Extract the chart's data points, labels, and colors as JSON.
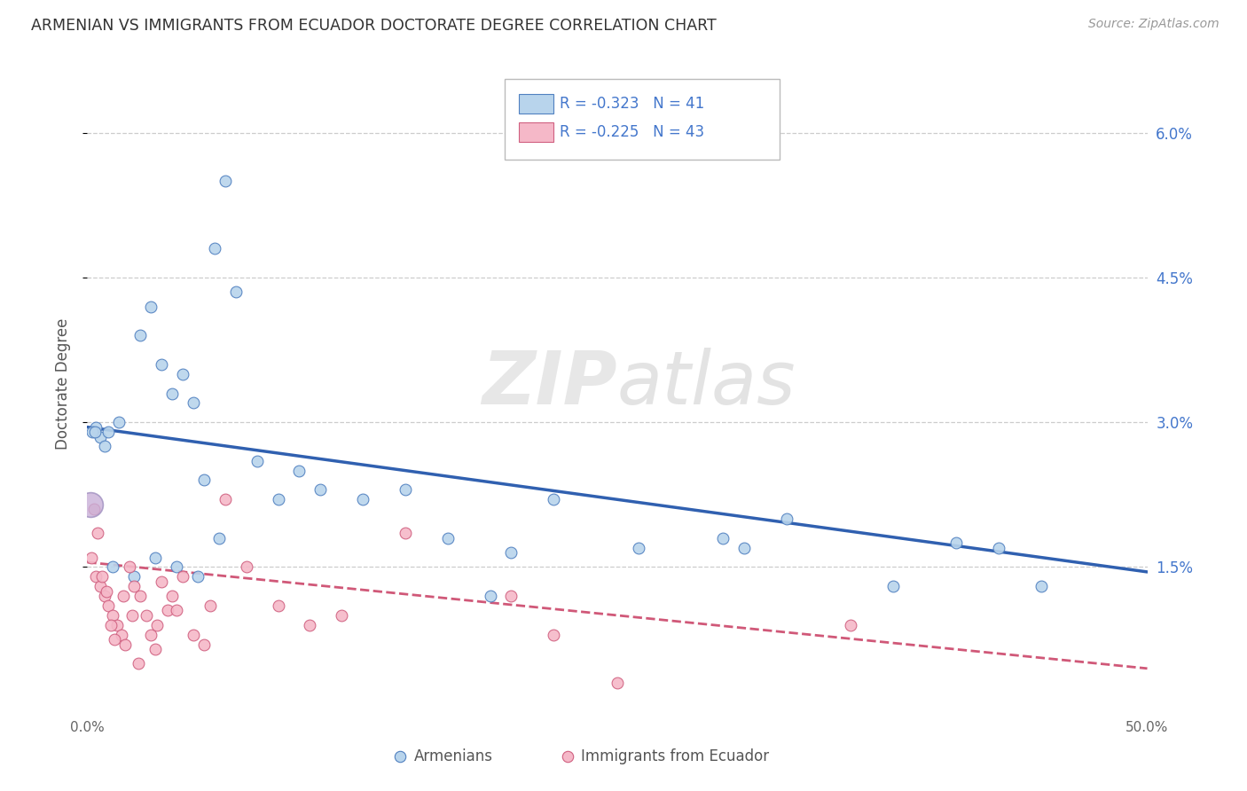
{
  "title": "ARMENIAN VS IMMIGRANTS FROM ECUADOR DOCTORATE DEGREE CORRELATION CHART",
  "source": "Source: ZipAtlas.com",
  "ylabel": "Doctorate Degree",
  "watermark": "ZIPatlas",
  "legend_r1": "R = -0.323",
  "legend_n1": "N = 41",
  "legend_r2": "R = -0.225",
  "legend_n2": "N = 43",
  "legend_label1": "Armenians",
  "legend_label2": "Immigrants from Ecuador",
  "xmin": 0.0,
  "xmax": 50.0,
  "ymin": 0.0,
  "ymax": 6.8,
  "ytick_vals": [
    1.5,
    3.0,
    4.5,
    6.0
  ],
  "ytick_labels": [
    "1.5%",
    "3.0%",
    "4.5%",
    "6.0%"
  ],
  "color_armenians_fill": "#b8d4ec",
  "color_armenians_edge": "#5080c0",
  "color_ecuador_fill": "#f5b8c8",
  "color_ecuador_edge": "#d06080",
  "color_line_armenians": "#3060b0",
  "color_line_ecuador": "#d05878",
  "background_color": "#ffffff",
  "grid_color": "#cccccc",
  "armenians_x": [
    0.4,
    0.6,
    0.8,
    1.0,
    1.5,
    2.5,
    3.0,
    3.5,
    4.0,
    4.5,
    5.0,
    5.5,
    6.0,
    6.5,
    7.0,
    8.0,
    9.0,
    10.0,
    11.0,
    13.0,
    15.0,
    17.0,
    19.0,
    20.0,
    22.0,
    26.0,
    30.0,
    31.0,
    33.0,
    38.0,
    41.0,
    43.0,
    45.0,
    1.2,
    2.2,
    3.2,
    4.2,
    5.2,
    6.2,
    0.25,
    0.35
  ],
  "armenians_y": [
    2.95,
    2.85,
    2.75,
    2.9,
    3.0,
    3.9,
    4.2,
    3.6,
    3.3,
    3.5,
    3.2,
    2.4,
    4.8,
    5.5,
    4.35,
    2.6,
    2.2,
    2.5,
    2.3,
    2.2,
    2.3,
    1.8,
    1.2,
    1.65,
    2.2,
    1.7,
    1.8,
    1.7,
    2.0,
    1.3,
    1.75,
    1.7,
    1.3,
    1.5,
    1.4,
    1.6,
    1.5,
    1.4,
    1.8,
    2.9,
    2.9
  ],
  "ecuador_x": [
    0.2,
    0.4,
    0.6,
    0.8,
    1.0,
    1.2,
    1.4,
    1.6,
    1.8,
    2.0,
    2.2,
    2.5,
    2.8,
    3.0,
    3.2,
    3.5,
    3.8,
    4.0,
    4.5,
    5.0,
    5.5,
    6.5,
    7.5,
    9.0,
    10.5,
    12.0,
    15.0,
    20.0,
    22.0,
    25.0,
    36.0,
    0.3,
    0.5,
    0.7,
    0.9,
    1.1,
    1.3,
    1.7,
    2.1,
    2.4,
    3.3,
    5.8,
    4.2
  ],
  "ecuador_y": [
    1.6,
    1.4,
    1.3,
    1.2,
    1.1,
    1.0,
    0.9,
    0.8,
    0.7,
    1.5,
    1.3,
    1.2,
    1.0,
    0.8,
    0.65,
    1.35,
    1.05,
    1.2,
    1.4,
    0.8,
    0.7,
    2.2,
    1.5,
    1.1,
    0.9,
    1.0,
    1.85,
    1.2,
    0.8,
    0.3,
    0.9,
    2.1,
    1.85,
    1.4,
    1.25,
    0.9,
    0.75,
    1.2,
    1.0,
    0.5,
    0.9,
    1.1,
    1.05
  ],
  "line_armenians_x0": 0.0,
  "line_armenians_x1": 50.0,
  "line_armenians_y0": 2.95,
  "line_armenians_y1": 1.45,
  "line_ecuador_x0": 0.0,
  "line_ecuador_x1": 50.0,
  "line_ecuador_y0": 1.55,
  "line_ecuador_y1": 0.45,
  "big_dot_x": 0.15,
  "big_dot_y": 2.15,
  "big_dot_size": 400,
  "big_dot_fill": "#c8b0d8",
  "big_dot_edge": "#a090c0"
}
